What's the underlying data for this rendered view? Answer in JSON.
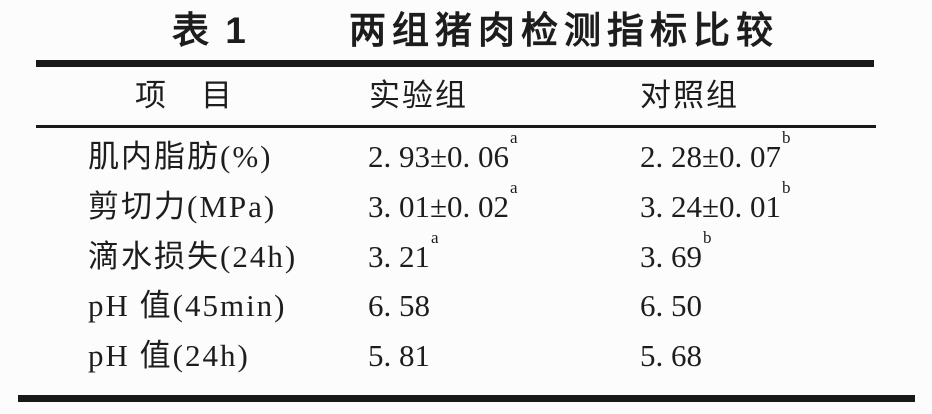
{
  "title": {
    "label": "表 1",
    "text": "两组猪肉检测指标比较"
  },
  "table": {
    "columns": [
      "项　目",
      "实验组",
      "对照组"
    ],
    "rows": [
      {
        "item": "肌内脂肪(%)",
        "exp": "2. 93±0. 06",
        "exp_sup": "a",
        "ctrl": "2. 28±0. 07",
        "ctrl_sup": "b"
      },
      {
        "item": "剪切力(MPa)",
        "exp": "3. 01±0. 02",
        "exp_sup": "a",
        "ctrl": "3. 24±0. 01",
        "ctrl_sup": "b"
      },
      {
        "item": "滴水损失(24h)",
        "exp": "3. 21",
        "exp_sup": "a",
        "ctrl": "3. 69",
        "ctrl_sup": "b"
      },
      {
        "item": "pH 值(45min)",
        "exp": "6. 58",
        "exp_sup": "",
        "ctrl": "6. 50",
        "ctrl_sup": ""
      },
      {
        "item": "pH 值(24h)",
        "exp": "5. 81",
        "exp_sup": "",
        "ctrl": "5. 68",
        "ctrl_sup": ""
      }
    ]
  },
  "colors": {
    "text": "#1d1d1d",
    "rule": "#191919",
    "background": "#fcfcfc"
  }
}
